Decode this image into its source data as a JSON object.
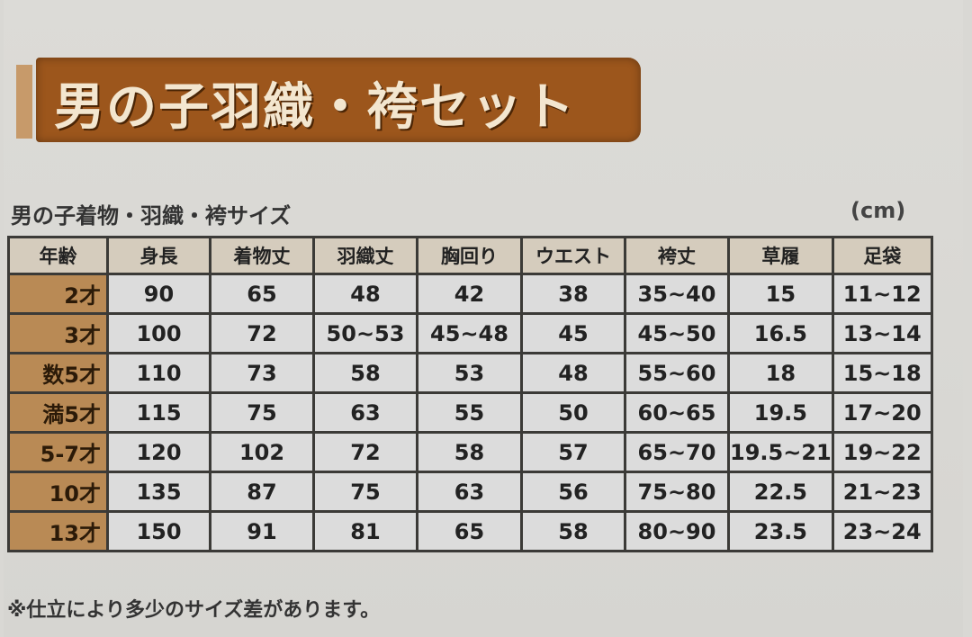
{
  "title": "男の子羽織・袴セット",
  "subtitle": "男の子着物・羽織・袴サイズ",
  "unit": "(cm)",
  "table": {
    "headers": [
      "年齢",
      "身長",
      "着物丈",
      "羽織丈",
      "胸回り",
      "ウエスト",
      "袴丈",
      "草履",
      "足袋"
    ],
    "rows": [
      [
        "2才",
        "90",
        "65",
        "48",
        "42",
        "38",
        "35~40",
        "15",
        "11~12"
      ],
      [
        "3才",
        "100",
        "72",
        "50~53",
        "45~48",
        "45",
        "45~50",
        "16.5",
        "13~14"
      ],
      [
        "数5才",
        "110",
        "73",
        "58",
        "53",
        "48",
        "55~60",
        "18",
        "15~18"
      ],
      [
        "満5才",
        "115",
        "75",
        "63",
        "55",
        "50",
        "60~65",
        "19.5",
        "17~20"
      ],
      [
        "5-7才",
        "120",
        "102",
        "72",
        "58",
        "57",
        "65~70",
        "19.5~21",
        "19~22"
      ],
      [
        "10才",
        "135",
        "87",
        "75",
        "63",
        "56",
        "75~80",
        "22.5",
        "21~23"
      ],
      [
        "13才",
        "150",
        "91",
        "81",
        "65",
        "58",
        "80~90",
        "23.5",
        "23~24"
      ]
    ]
  },
  "footer": "※仕立により多少のサイズ差があります。",
  "colors": {
    "banner": "#9c561c",
    "age_cell": "#b98a55"
  }
}
